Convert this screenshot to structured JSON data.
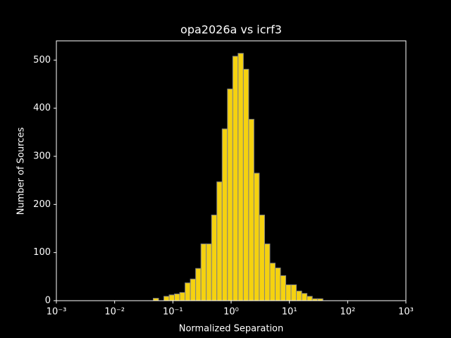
{
  "chart_data": {
    "type": "histogram",
    "title": "opa2026a vs icrf3",
    "xlabel": "Normalized Separation",
    "ylabel": "Number of Sources",
    "bins": [
      0.046,
      0.0568,
      0.07,
      0.0863,
      0.1064,
      0.1312,
      0.1618,
      0.1995,
      0.246,
      0.3034,
      0.3741,
      0.4613,
      0.5689,
      0.7015,
      0.865,
      1.0666,
      1.3152,
      1.6218,
      2.0,
      2.466,
      3.0409,
      3.7497,
      4.6238,
      5.7016,
      7.0307,
      8.6696,
      10.69,
      13.18,
      16.26,
      20.04,
      24.72,
      30.48,
      37.58
    ],
    "counts": [
      5,
      0,
      9,
      12,
      14,
      17,
      37,
      45,
      67,
      118,
      118,
      178,
      247,
      357,
      440,
      508,
      514,
      481,
      377,
      265,
      178,
      118,
      78,
      68,
      52,
      33,
      33,
      20,
      15,
      9,
      4,
      4
    ],
    "color": "#f5d20f",
    "edgecolor": "#808080",
    "xscale": "log",
    "xlim": [
      0.001,
      1000
    ],
    "xticks": [
      {
        "value": 0.001,
        "label": "10⁻³"
      },
      {
        "value": 0.01,
        "label": "10⁻²"
      },
      {
        "value": 0.1,
        "label": "10⁻¹"
      },
      {
        "value": 1,
        "label": "10⁰"
      },
      {
        "value": 10,
        "label": "10¹"
      },
      {
        "value": 100,
        "label": "10²"
      },
      {
        "value": 1000,
        "label": "10³"
      }
    ],
    "ylim": [
      0,
      540
    ],
    "yticks": [
      0,
      100,
      200,
      300,
      400,
      500
    ],
    "grid": false
  }
}
